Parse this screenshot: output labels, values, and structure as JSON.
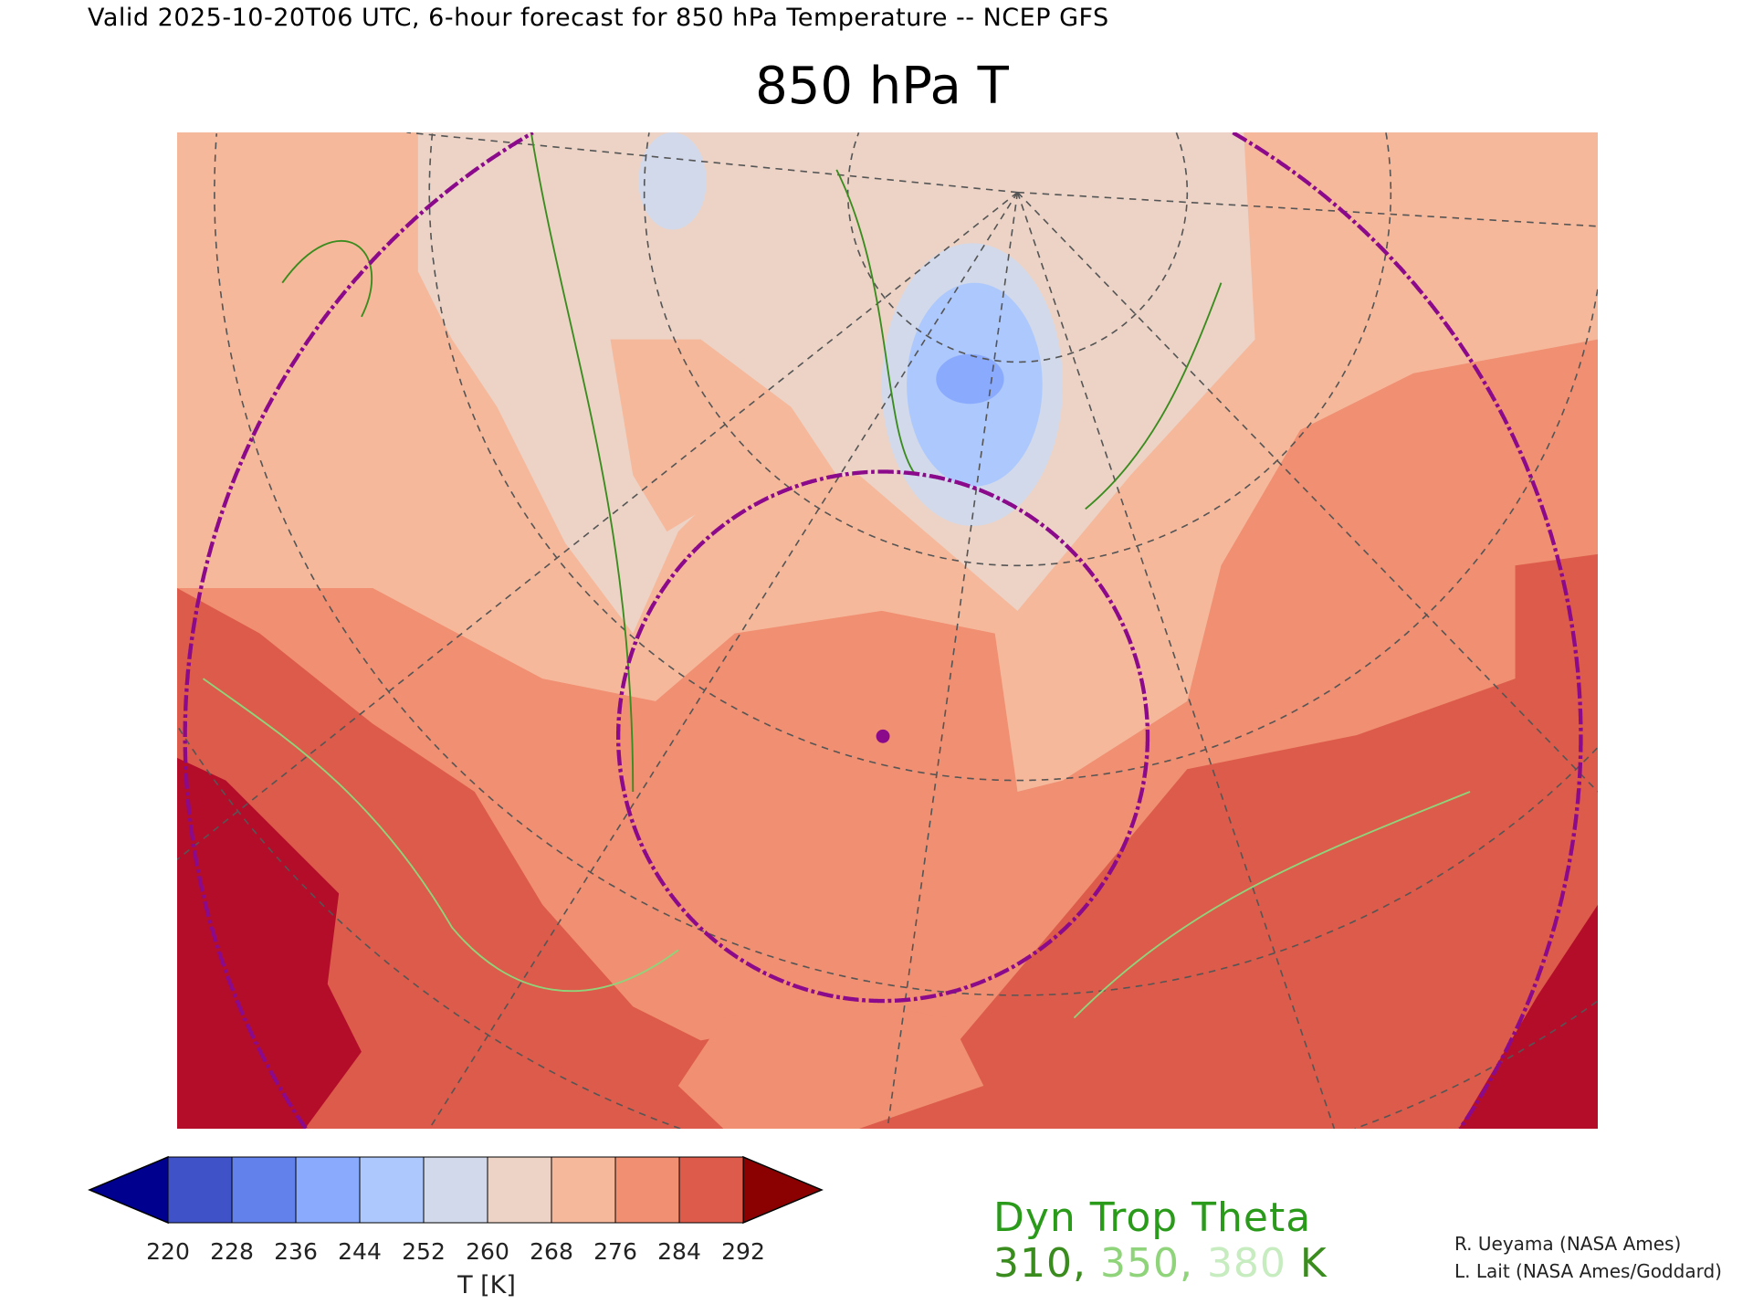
{
  "subtitle": "Valid 2025-10-20T06 UTC, 6-hour forecast for 850 hPa Temperature -- NCEP GFS",
  "title": "850 hPa T",
  "chart_data": {
    "type": "heatmap",
    "title": "850 hPa T",
    "variable": "850 hPa Temperature",
    "model": "NCEP GFS",
    "valid_time": "2025-10-20T06 UTC",
    "forecast_hour": 6,
    "colorbar": {
      "label": "T [K]",
      "ticks": [
        220,
        228,
        236,
        244,
        252,
        260,
        268,
        276,
        284,
        292
      ],
      "tick_labels": [
        "220",
        "228",
        "236",
        "244",
        "252",
        "260",
        "268",
        "276",
        "284",
        "292"
      ],
      "under_color": "#00008e",
      "over_color": "#8b0000",
      "colors": [
        "#3f52c7",
        "#6281ea",
        "#8aaafd",
        "#adc8fc",
        "#d1d9ea",
        "#ecd3c6",
        "#f6b89b",
        "#f08f71",
        "#dc5b4a"
      ]
    },
    "contours": {
      "label_line1": "Dyn Trop Theta",
      "levels": [
        "310",
        "350",
        "380"
      ],
      "unit": "K",
      "colors": [
        "#3a8c1e",
        "#8fd47a",
        "#c6ecc0"
      ]
    }
  },
  "credits": [
    "R. Ueyama (NASA Ames)",
    "L. Lait (NASA Ames/Goddard)"
  ],
  "colors": {
    "range_ring": "#8b0a8b",
    "dyn1": "#2a9a1a"
  }
}
